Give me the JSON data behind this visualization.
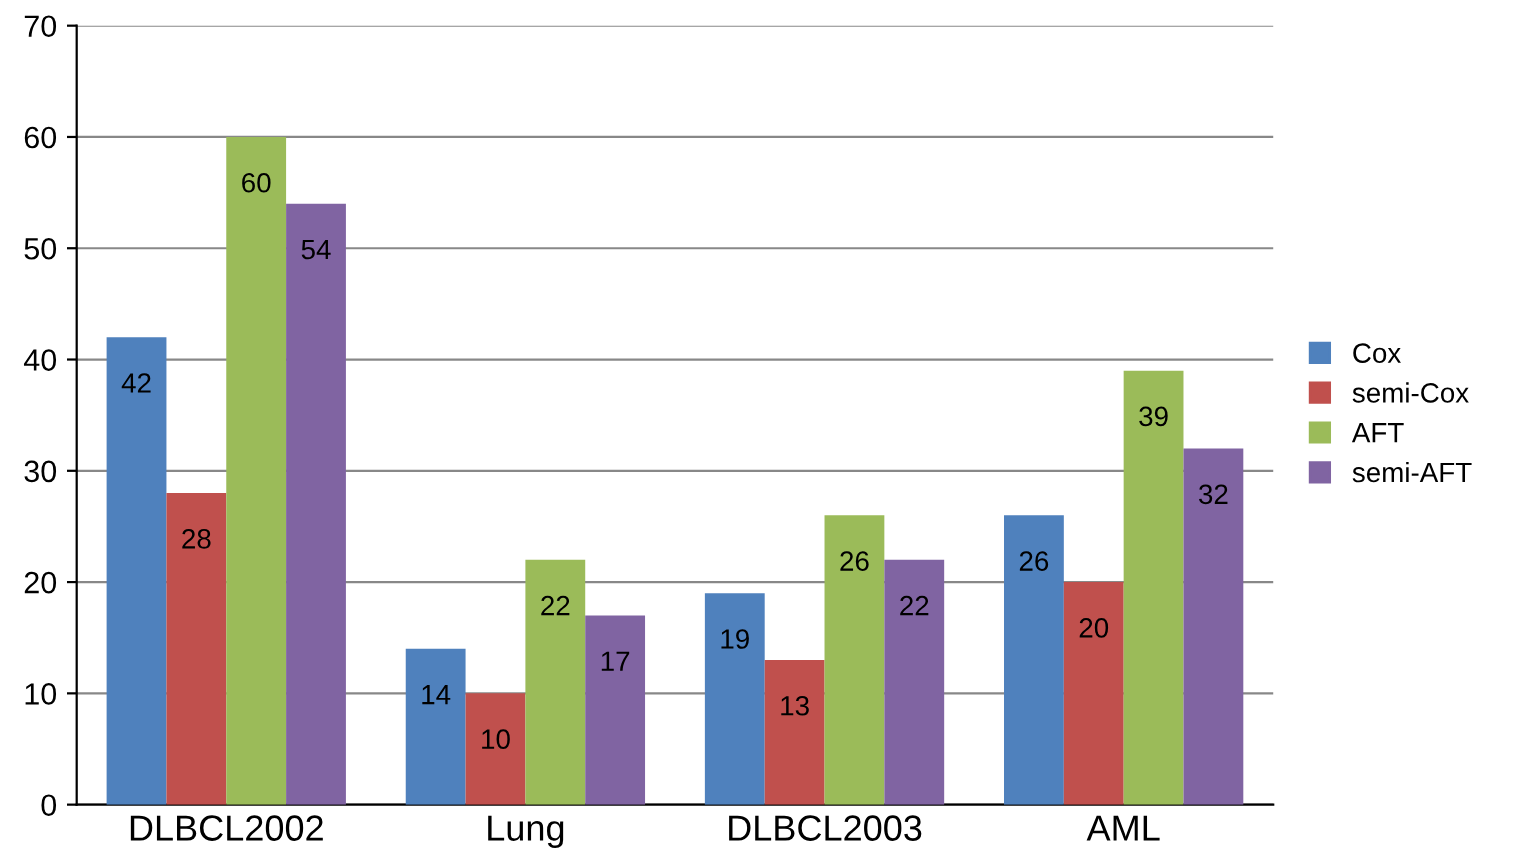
{
  "chart_data": {
    "type": "bar",
    "categories": [
      "DLBCL2002",
      "Lung",
      "DLBCL2003",
      "AML"
    ],
    "series": [
      {
        "name": "Cox",
        "color": "#4f81bd",
        "values": [
          42,
          14,
          19,
          26
        ]
      },
      {
        "name": "semi-Cox",
        "color": "#c0504d",
        "values": [
          28,
          10,
          13,
          20
        ]
      },
      {
        "name": "AFT",
        "color": "#9bbb59",
        "values": [
          60,
          22,
          26,
          39
        ]
      },
      {
        "name": "semi-AFT",
        "color": "#8064a2",
        "values": [
          54,
          17,
          22,
          32
        ]
      }
    ],
    "ylim": [
      0,
      70
    ],
    "yticks": [
      0,
      10,
      20,
      30,
      40,
      50,
      60,
      70
    ],
    "grid": "y",
    "legend": "right",
    "data_labels": true
  }
}
